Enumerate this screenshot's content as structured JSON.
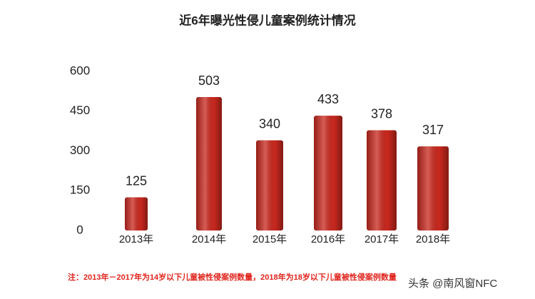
{
  "chart_data": {
    "type": "bar",
    "title": "近6年曝光性侵儿童案例统计情况",
    "categories": [
      "2013年",
      "2014年",
      "2015年",
      "2016年",
      "2017年",
      "2018年"
    ],
    "values": [
      125,
      503,
      340,
      433,
      378,
      317
    ],
    "color": "#c8281e",
    "ylim": [
      0,
      600
    ],
    "yticks": [
      0,
      150,
      300,
      450,
      600
    ],
    "grid": false,
    "note": "注：2013年－2017年为14岁以下儿童被性侵案例数量，2018年为18岁以下儿童被性侵案例数量",
    "watermark": "头条 @南风窗NFC"
  }
}
